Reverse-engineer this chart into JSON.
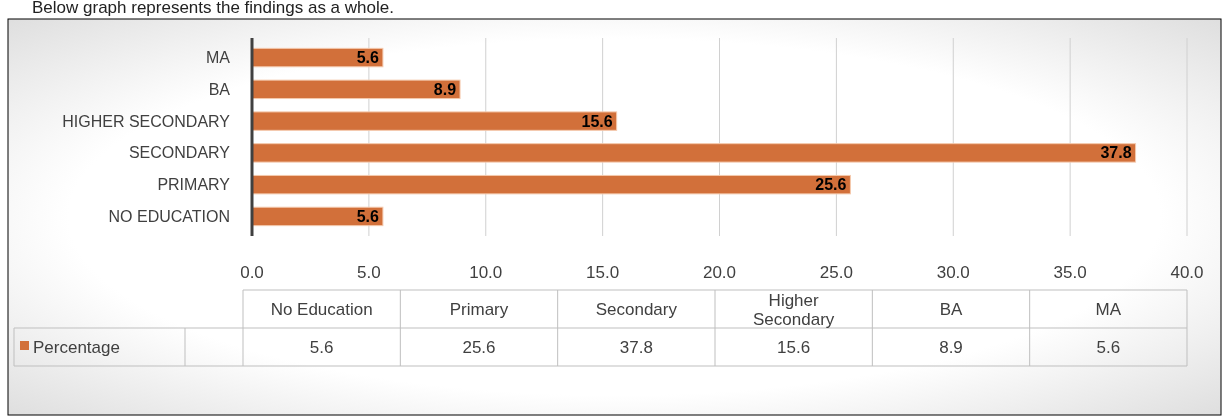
{
  "chart_data": {
    "type": "bar",
    "orientation": "horizontal",
    "categories": [
      "MA",
      "BA",
      "HIGHER SECONDARY",
      "SECONDARY",
      "PRIMARY",
      "NO EDUCATION"
    ],
    "series": [
      {
        "name": "Percentage",
        "color": "#d2703a",
        "values": [
          5.6,
          8.9,
          15.6,
          37.8,
          25.6,
          5.6
        ]
      }
    ],
    "xlim": [
      0,
      40
    ],
    "xticks": [
      {
        "value": 0,
        "label": "0.0"
      },
      {
        "value": 5,
        "label": "5.0"
      },
      {
        "value": 10,
        "label": "10.0"
      },
      {
        "value": 15,
        "label": "15.0"
      },
      {
        "value": 20,
        "label": "20.0"
      },
      {
        "value": 25,
        "label": "25.0"
      },
      {
        "value": 30,
        "label": "30.0"
      },
      {
        "value": 35,
        "label": "35.0"
      },
      {
        "value": 40,
        "label": "40.0"
      }
    ],
    "grid": "x",
    "data_labels": true,
    "annotations": [
      "Below graph represents the findings as a whole.",
      "No Education",
      "Primary",
      "Secondary",
      "Higher Secondary",
      "BA",
      "MA",
      "5.6",
      "25.6",
      "37.8",
      "15.6",
      "8.9",
      "5.6"
    ]
  }
}
